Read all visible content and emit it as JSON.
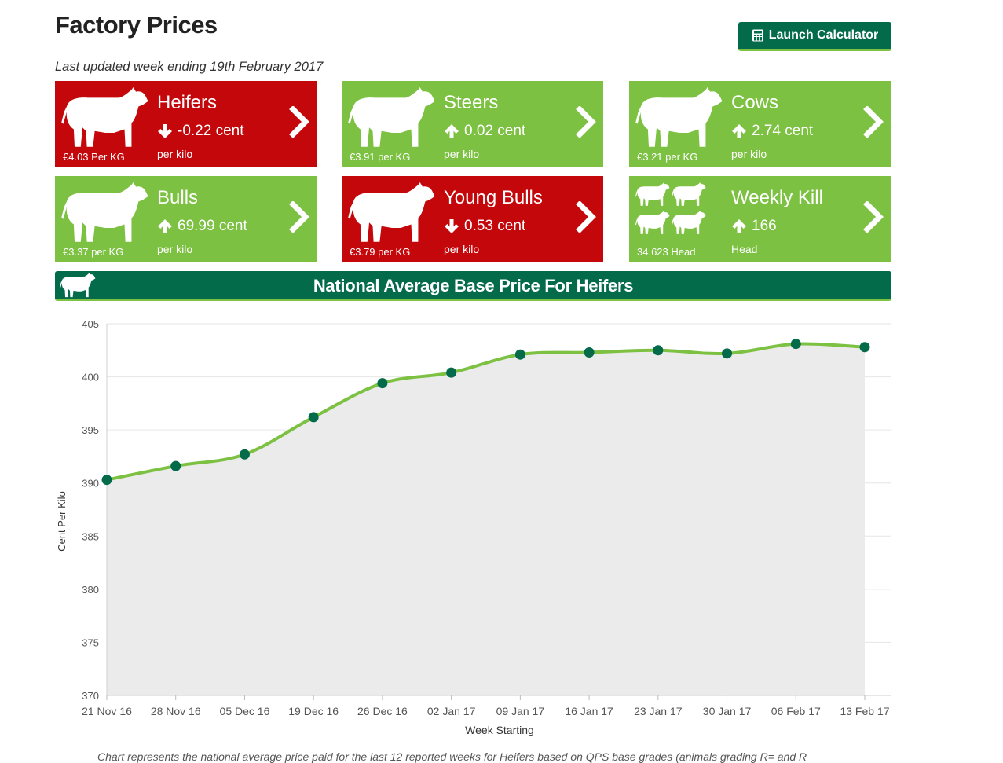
{
  "page": {
    "title": "Factory Prices",
    "calculator_label": "Launch Calculator",
    "updated": "Last updated week ending 19th February 2017"
  },
  "tiles": [
    {
      "name": "Heifers",
      "direction": "down",
      "change": "-0.22 cent",
      "unit": "per kilo",
      "price": "€4.03 Per KG",
      "color": "#c4070b"
    },
    {
      "name": "Steers",
      "direction": "up",
      "change": "0.02 cent",
      "unit": "per kilo",
      "price": "€3.91 per KG",
      "color": "#7cc142"
    },
    {
      "name": "Cows",
      "direction": "up",
      "change": "2.74 cent",
      "unit": "per kilo",
      "price": "€3.21 per KG",
      "color": "#7cc142"
    },
    {
      "name": "Bulls",
      "direction": "up",
      "change": "69.99 cent",
      "unit": "per kilo",
      "price": "€3.37 per KG",
      "color": "#7cc142"
    },
    {
      "name": "Young Bulls",
      "direction": "down",
      "change": "0.53 cent",
      "unit": "per kilo",
      "price": "€3.79 per KG",
      "color": "#c4070b"
    },
    {
      "name": "Weekly Kill",
      "direction": "up",
      "change": "166",
      "unit": "Head",
      "price": "34,623 Head",
      "color": "#7cc142"
    }
  ],
  "banner": {
    "title": "National Average Base Price For Heifers",
    "icon": "cow-icon"
  },
  "chart_data": {
    "type": "line",
    "xlabel": "Week Starting",
    "ylabel": "Cent Per Kilo",
    "ylim": [
      370,
      405
    ],
    "yticks": [
      370,
      375,
      380,
      385,
      390,
      395,
      400,
      405
    ],
    "categories": [
      "21 Nov 16",
      "28 Nov 16",
      "05 Dec 16",
      "19 Dec 16",
      "26 Dec 16",
      "02 Jan 17",
      "09 Jan 17",
      "16 Jan 17",
      "23 Jan 17",
      "30 Jan 17",
      "06 Feb 17",
      "13 Feb 17"
    ],
    "values": [
      390.3,
      391.6,
      392.7,
      396.2,
      399.4,
      400.4,
      402.1,
      402.3,
      402.5,
      402.2,
      403.1,
      402.8
    ],
    "grid": true,
    "area_fill": true,
    "colors": {
      "line": "#7cc142",
      "marker": "#036a4a",
      "area": "#ebebeb",
      "grid": "#e6e6e6"
    }
  },
  "caption": "Chart represents the national average price paid for the last 12 reported weeks for Heifers based on QPS base grades (animals grading R= and R"
}
